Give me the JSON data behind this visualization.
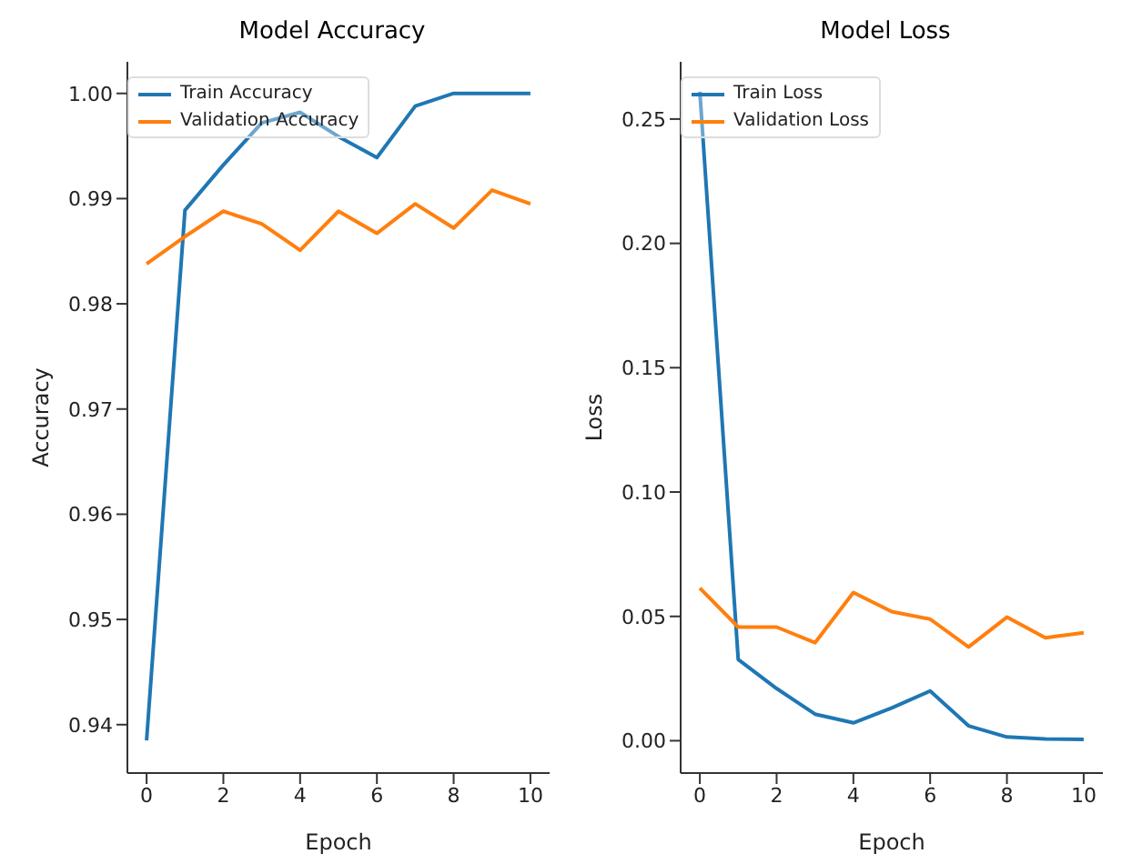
{
  "chart_data": [
    {
      "type": "line",
      "title": "Model Accuracy",
      "xlabel": "Epoch",
      "ylabel": "Accuracy",
      "x": [
        0,
        1,
        2,
        3,
        4,
        5,
        6,
        7,
        8,
        9,
        10
      ],
      "series": [
        {
          "name": "Train Accuracy",
          "color": "#1f77b4",
          "values": [
            0.9385,
            0.9889,
            0.9932,
            0.9972,
            0.9982,
            0.9959,
            0.9939,
            0.9988,
            1.0,
            1.0,
            1.0
          ]
        },
        {
          "name": "Validation Accuracy",
          "color": "#ff7f0e",
          "values": [
            0.9838,
            0.9864,
            0.9888,
            0.9876,
            0.9851,
            0.9888,
            0.9867,
            0.9895,
            0.9872,
            0.9908,
            0.9895
          ]
        }
      ],
      "xlim": [
        -0.5,
        10.5
      ],
      "xticks": [
        0,
        2,
        4,
        6,
        8,
        10
      ],
      "ylim": [
        0.9354,
        1.003
      ],
      "yticks": [
        {
          "value": 0.94,
          "label": "0.94"
        },
        {
          "value": 0.95,
          "label": "0.95"
        },
        {
          "value": 0.96,
          "label": "0.96"
        },
        {
          "value": 0.97,
          "label": "0.97"
        },
        {
          "value": 0.98,
          "label": "0.98"
        },
        {
          "value": 0.99,
          "label": "0.99"
        },
        {
          "value": 1.0,
          "label": "1.00"
        }
      ],
      "legend": "top left",
      "marker": "none",
      "line_style": "solid",
      "grid": false
    },
    {
      "type": "line",
      "title": "Model Loss",
      "xlabel": "Epoch",
      "ylabel": "Loss",
      "x": [
        0,
        1,
        2,
        3,
        4,
        5,
        6,
        7,
        8,
        9,
        10
      ],
      "series": [
        {
          "name": "Train Loss",
          "color": "#1f77b4",
          "values": [
            0.261,
            0.0327,
            0.021,
            0.0107,
            0.0072,
            0.0132,
            0.02,
            0.006,
            0.0015,
            0.0007,
            0.0005
          ]
        },
        {
          "name": "Validation Loss",
          "color": "#ff7f0e",
          "values": [
            0.0614,
            0.0457,
            0.0457,
            0.0394,
            0.0596,
            0.0519,
            0.0489,
            0.0377,
            0.0497,
            0.0414,
            0.0434
          ]
        }
      ],
      "xlim": [
        -0.5,
        10.5
      ],
      "xticks": [
        0,
        2,
        4,
        6,
        8,
        10
      ],
      "ylim": [
        -0.013,
        0.273
      ],
      "yticks": [
        {
          "value": 0,
          "label": "0.00"
        },
        {
          "value": 0.05,
          "label": "0.05"
        },
        {
          "value": 0.1,
          "label": "0.10"
        },
        {
          "value": 0.15,
          "label": "0.15"
        },
        {
          "value": 0.2,
          "label": "0.20"
        },
        {
          "value": 0.25,
          "label": "0.25"
        }
      ],
      "legend": "top left",
      "marker": "none",
      "line_style": "solid",
      "grid": false
    }
  ]
}
